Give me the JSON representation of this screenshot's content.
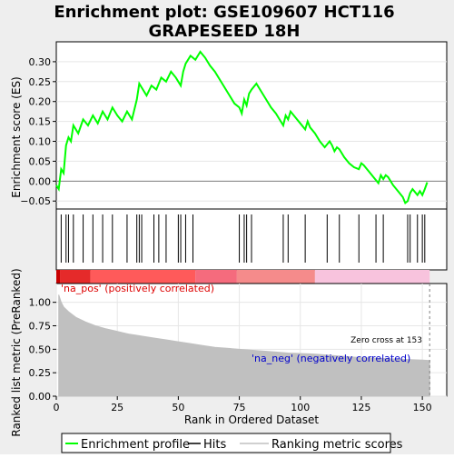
{
  "title_line1": "Enrichment plot: GSE109607 HCT116",
  "title_line2": "GRAPESEED 18H",
  "colors": {
    "frame_bg": "#eeeeee",
    "es_line": "#00ff00",
    "hits": "#000000",
    "ranking": "#c0c0c0",
    "pos_label": "#dd0000",
    "neg_label": "#0000cc"
  },
  "chart_data": [
    {
      "type": "line",
      "name": "enrichment-profile",
      "ylabel": "Enrichment score (ES)",
      "xlim": [
        0,
        160
      ],
      "ylim": [
        -0.07,
        0.35
      ],
      "yticks": [
        -0.05,
        0.0,
        0.05,
        0.1,
        0.15,
        0.2,
        0.25,
        0.3
      ],
      "ytick_labels": [
        "−0.05",
        "0.00",
        "0.05",
        "0.10",
        "0.15",
        "0.20",
        "0.25",
        "0.30"
      ],
      "grid": true,
      "series": [
        {
          "x": [
            0,
            1,
            2,
            3,
            4,
            5,
            6,
            7,
            9,
            11,
            13,
            15,
            17,
            19,
            21,
            23,
            25,
            27,
            29,
            31,
            33,
            34,
            35,
            37,
            39,
            41,
            43,
            45,
            47,
            49,
            51,
            52,
            53,
            55,
            57,
            59,
            61,
            63,
            65,
            67,
            69,
            71,
            73,
            75,
            76,
            77,
            78,
            79,
            80,
            82,
            84,
            86,
            88,
            90,
            92,
            93,
            94,
            95,
            96,
            98,
            100,
            102,
            103,
            104,
            106,
            108,
            110,
            112,
            113,
            114,
            115,
            116,
            118,
            120,
            122,
            124,
            125,
            126,
            128,
            130,
            132,
            133,
            134,
            135,
            136,
            138,
            140,
            142,
            143,
            144,
            145,
            146,
            148,
            149,
            150,
            151,
            152
          ],
          "y": [
            -0.01,
            -0.02,
            0.03,
            0.02,
            0.09,
            0.11,
            0.1,
            0.14,
            0.12,
            0.155,
            0.14,
            0.165,
            0.145,
            0.175,
            0.155,
            0.185,
            0.165,
            0.15,
            0.175,
            0.155,
            0.205,
            0.245,
            0.235,
            0.215,
            0.24,
            0.23,
            0.26,
            0.25,
            0.275,
            0.26,
            0.24,
            0.275,
            0.295,
            0.315,
            0.305,
            0.325,
            0.31,
            0.29,
            0.275,
            0.255,
            0.235,
            0.215,
            0.195,
            0.185,
            0.17,
            0.205,
            0.19,
            0.22,
            0.23,
            0.245,
            0.225,
            0.205,
            0.185,
            0.17,
            0.15,
            0.14,
            0.165,
            0.155,
            0.175,
            0.16,
            0.145,
            0.13,
            0.15,
            0.135,
            0.12,
            0.1,
            0.085,
            0.1,
            0.09,
            0.075,
            0.085,
            0.08,
            0.06,
            0.045,
            0.035,
            0.03,
            0.045,
            0.04,
            0.025,
            0.01,
            -0.005,
            0.015,
            0.005,
            0.015,
            0.01,
            -0.01,
            -0.025,
            -0.04,
            -0.055,
            -0.05,
            -0.03,
            -0.02,
            -0.035,
            -0.025,
            -0.035,
            -0.02,
            -0.003
          ]
        }
      ]
    },
    {
      "type": "hits",
      "name": "hits",
      "xlim": [
        0,
        160
      ],
      "positions": [
        2,
        4,
        5,
        7,
        11,
        15,
        19,
        23,
        29,
        33,
        34,
        35,
        40,
        42,
        45,
        50,
        51,
        53,
        56,
        75,
        77,
        78,
        80,
        93,
        95,
        102,
        111,
        116,
        124,
        131,
        134,
        144,
        145,
        148,
        150,
        151
      ]
    },
    {
      "type": "area",
      "name": "ranked-list-metric",
      "ylabel": "Ranked list metric (PreRanked)",
      "xlabel": "Rank in Ordered Dataset",
      "xlim": [
        0,
        160
      ],
      "ylim": [
        0,
        1.2
      ],
      "xticks": [
        0,
        25,
        50,
        75,
        100,
        125,
        150
      ],
      "yticks": [
        0.0,
        0.25,
        0.5,
        0.75,
        1.0
      ],
      "ytick_labels": [
        "0.00",
        "0.25",
        "0.50",
        "0.75",
        "1.00"
      ],
      "x": [
        1,
        2,
        3,
        5,
        8,
        12,
        16,
        20,
        25,
        30,
        35,
        40,
        45,
        50,
        55,
        60,
        65,
        70,
        75,
        80,
        85,
        90,
        95,
        100,
        105,
        110,
        115,
        120,
        125,
        130,
        135,
        140,
        145,
        150,
        153
      ],
      "values": [
        1.08,
        1.0,
        0.95,
        0.9,
        0.84,
        0.79,
        0.75,
        0.72,
        0.69,
        0.66,
        0.64,
        0.62,
        0.6,
        0.58,
        0.56,
        0.54,
        0.52,
        0.51,
        0.5,
        0.49,
        0.48,
        0.47,
        0.46,
        0.455,
        0.45,
        0.44,
        0.43,
        0.42,
        0.41,
        0.405,
        0.4,
        0.395,
        0.39,
        0.385,
        0.38
      ],
      "zero_cross_at": 153,
      "annotations": [
        "Zero cross at 153",
        "'na_pos' (positively correlated)",
        "'na_neg' (negatively correlated)"
      ]
    }
  ],
  "text": {
    "ylabel_es": "Enrichment score (ES)",
    "ylabel_metric": "Ranked list metric (PreRanked)",
    "xlabel": "Rank in Ordered Dataset",
    "zero_cross_label": "Zero cross at 153",
    "pos_label": "'na_pos' (positively correlated)",
    "neg_label": "'na_neg' (negatively correlated)"
  },
  "legend": {
    "placement": "bottom",
    "items": [
      {
        "label": "Enrichment profile",
        "color": "#00ff00"
      },
      {
        "label": "Hits",
        "color": "#000000"
      },
      {
        "label": "Ranking metric scores",
        "color": "#c0c0c0"
      }
    ]
  },
  "heatbar": {
    "segments": [
      {
        "from": 0,
        "to": 1.5,
        "color": "#c80000"
      },
      {
        "from": 1.5,
        "to": 14,
        "color": "#e52a2a"
      },
      {
        "from": 14,
        "to": 57,
        "color": "#ff5a5a"
      },
      {
        "from": 57,
        "to": 74,
        "color": "#f56b7d"
      },
      {
        "from": 74,
        "to": 106,
        "color": "#f58b8b"
      },
      {
        "from": 106,
        "to": 153,
        "color": "#f8c3dd"
      }
    ]
  }
}
